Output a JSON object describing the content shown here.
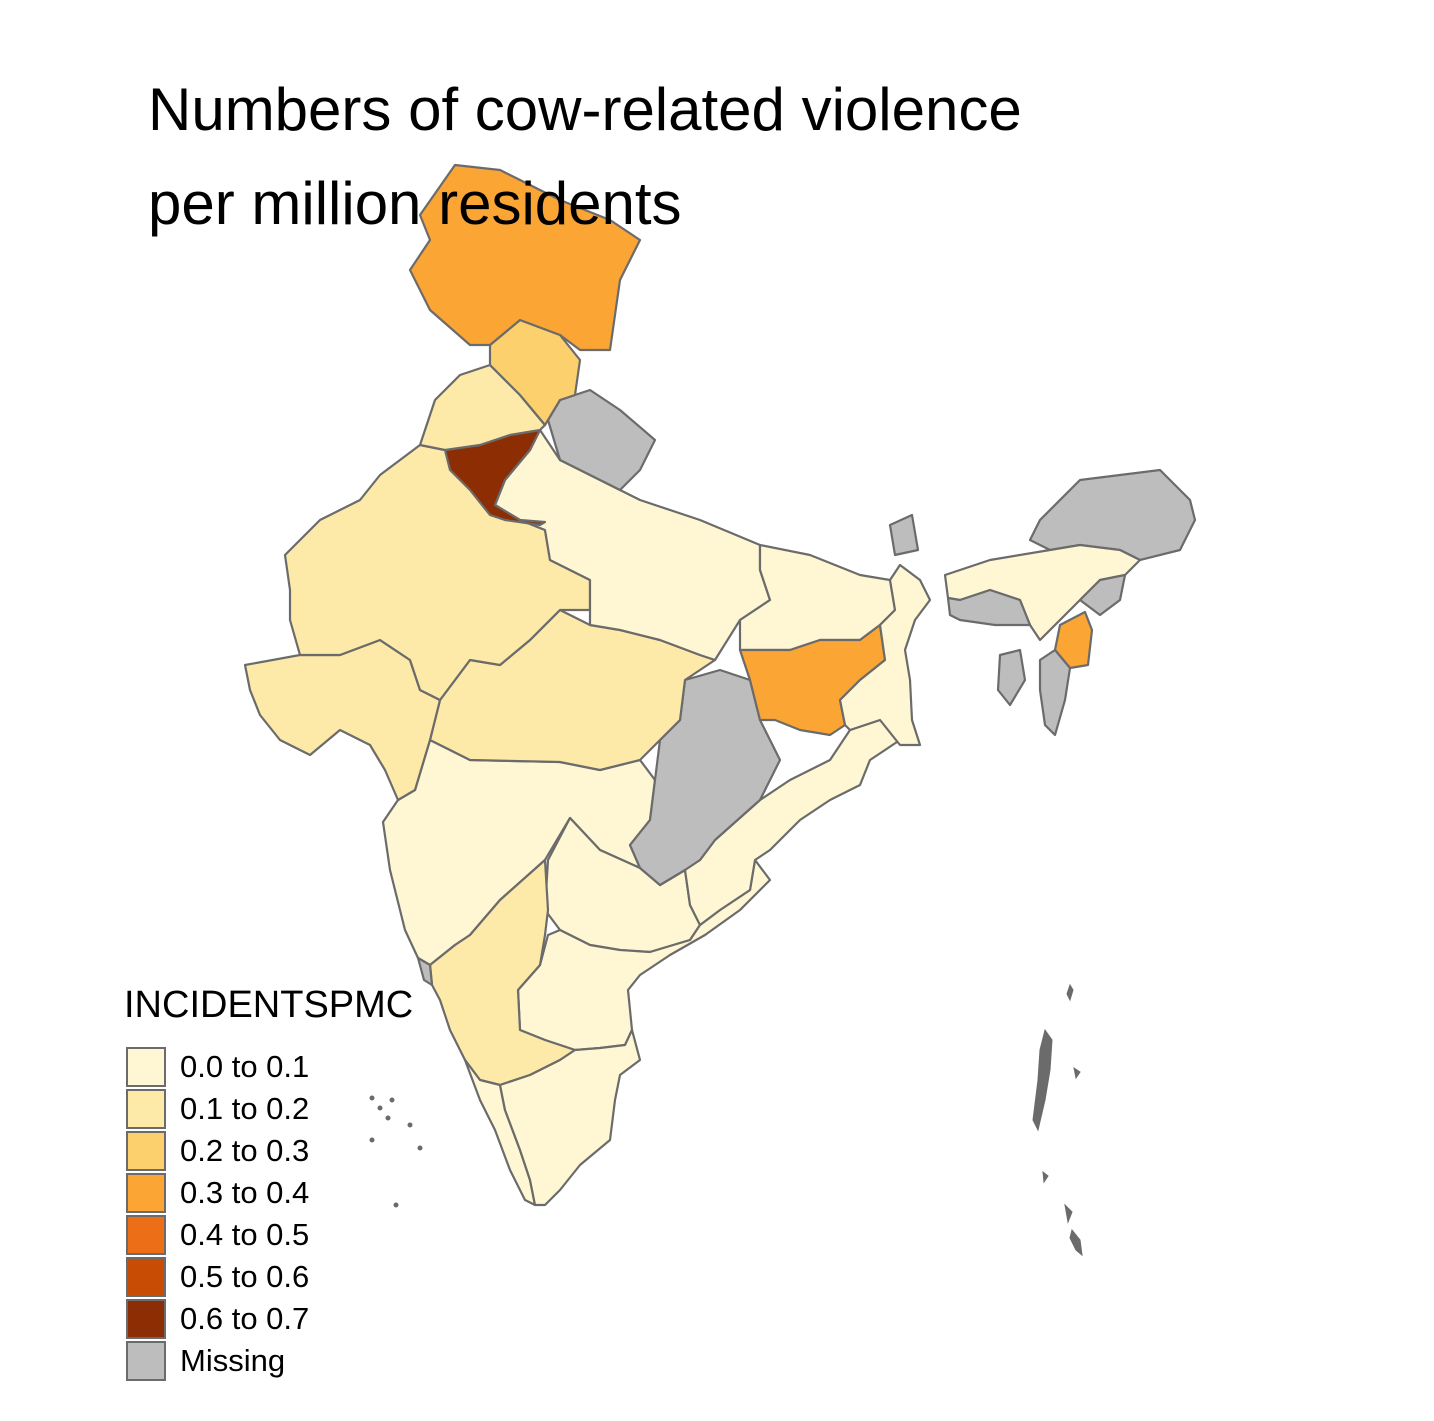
{
  "title": {
    "line1": "Numbers of cow-related violence",
    "line2": "per million residents"
  },
  "legend": {
    "title": "INCIDENTSPMC",
    "items": [
      {
        "label": "0.0 to 0.1",
        "color": "#FFF7D3"
      },
      {
        "label": "0.1 to 0.2",
        "color": "#FDE9A8"
      },
      {
        "label": "0.2 to 0.3",
        "color": "#FDD06E"
      },
      {
        "label": "0.3 to 0.4",
        "color": "#FBA535"
      },
      {
        "label": "0.4 to 0.5",
        "color": "#EC6F18"
      },
      {
        "label": "0.5 to 0.6",
        "color": "#C94C05"
      },
      {
        "label": "0.6 to 0.7",
        "color": "#8C2D04"
      },
      {
        "label": "Missing",
        "color": "#BDBDBD"
      }
    ]
  },
  "map": {
    "outline_color": "#6b6b6b",
    "regions": [
      {
        "name": "Jammu and Kashmir",
        "class": "0.3 to 0.4"
      },
      {
        "name": "Himachal Pradesh",
        "class": "0.2 to 0.3"
      },
      {
        "name": "Punjab",
        "class": "0.1 to 0.2"
      },
      {
        "name": "Uttarakhand",
        "class": "Missing"
      },
      {
        "name": "Haryana",
        "class": "0.6 to 0.7"
      },
      {
        "name": "Rajasthan",
        "class": "0.1 to 0.2"
      },
      {
        "name": "Gujarat",
        "class": "0.1 to 0.2"
      },
      {
        "name": "Madhya Pradesh",
        "class": "0.1 to 0.2"
      },
      {
        "name": "Uttar Pradesh",
        "class": "0.0 to 0.1"
      },
      {
        "name": "Bihar",
        "class": "0.0 to 0.1"
      },
      {
        "name": "Jharkhand",
        "class": "0.3 to 0.4"
      },
      {
        "name": "West Bengal",
        "class": "0.0 to 0.1"
      },
      {
        "name": "Chhattisgarh",
        "class": "Missing"
      },
      {
        "name": "Odisha",
        "class": "0.0 to 0.1"
      },
      {
        "name": "Maharashtra",
        "class": "0.0 to 0.1"
      },
      {
        "name": "Telangana",
        "class": "0.0 to 0.1"
      },
      {
        "name": "Andhra Pradesh",
        "class": "0.0 to 0.1"
      },
      {
        "name": "Karnataka",
        "class": "0.1 to 0.2"
      },
      {
        "name": "Goa",
        "class": "Missing"
      },
      {
        "name": "Kerala",
        "class": "0.0 to 0.1"
      },
      {
        "name": "Tamil Nadu",
        "class": "0.0 to 0.1"
      },
      {
        "name": "Sikkim",
        "class": "Missing"
      },
      {
        "name": "Arunachal Pradesh",
        "class": "Missing"
      },
      {
        "name": "Assam",
        "class": "0.0 to 0.1"
      },
      {
        "name": "Meghalaya",
        "class": "Missing"
      },
      {
        "name": "Nagaland",
        "class": "Missing"
      },
      {
        "name": "Manipur",
        "class": "0.3 to 0.4"
      },
      {
        "name": "Mizoram",
        "class": "Missing"
      },
      {
        "name": "Tripura",
        "class": "Missing"
      }
    ]
  }
}
